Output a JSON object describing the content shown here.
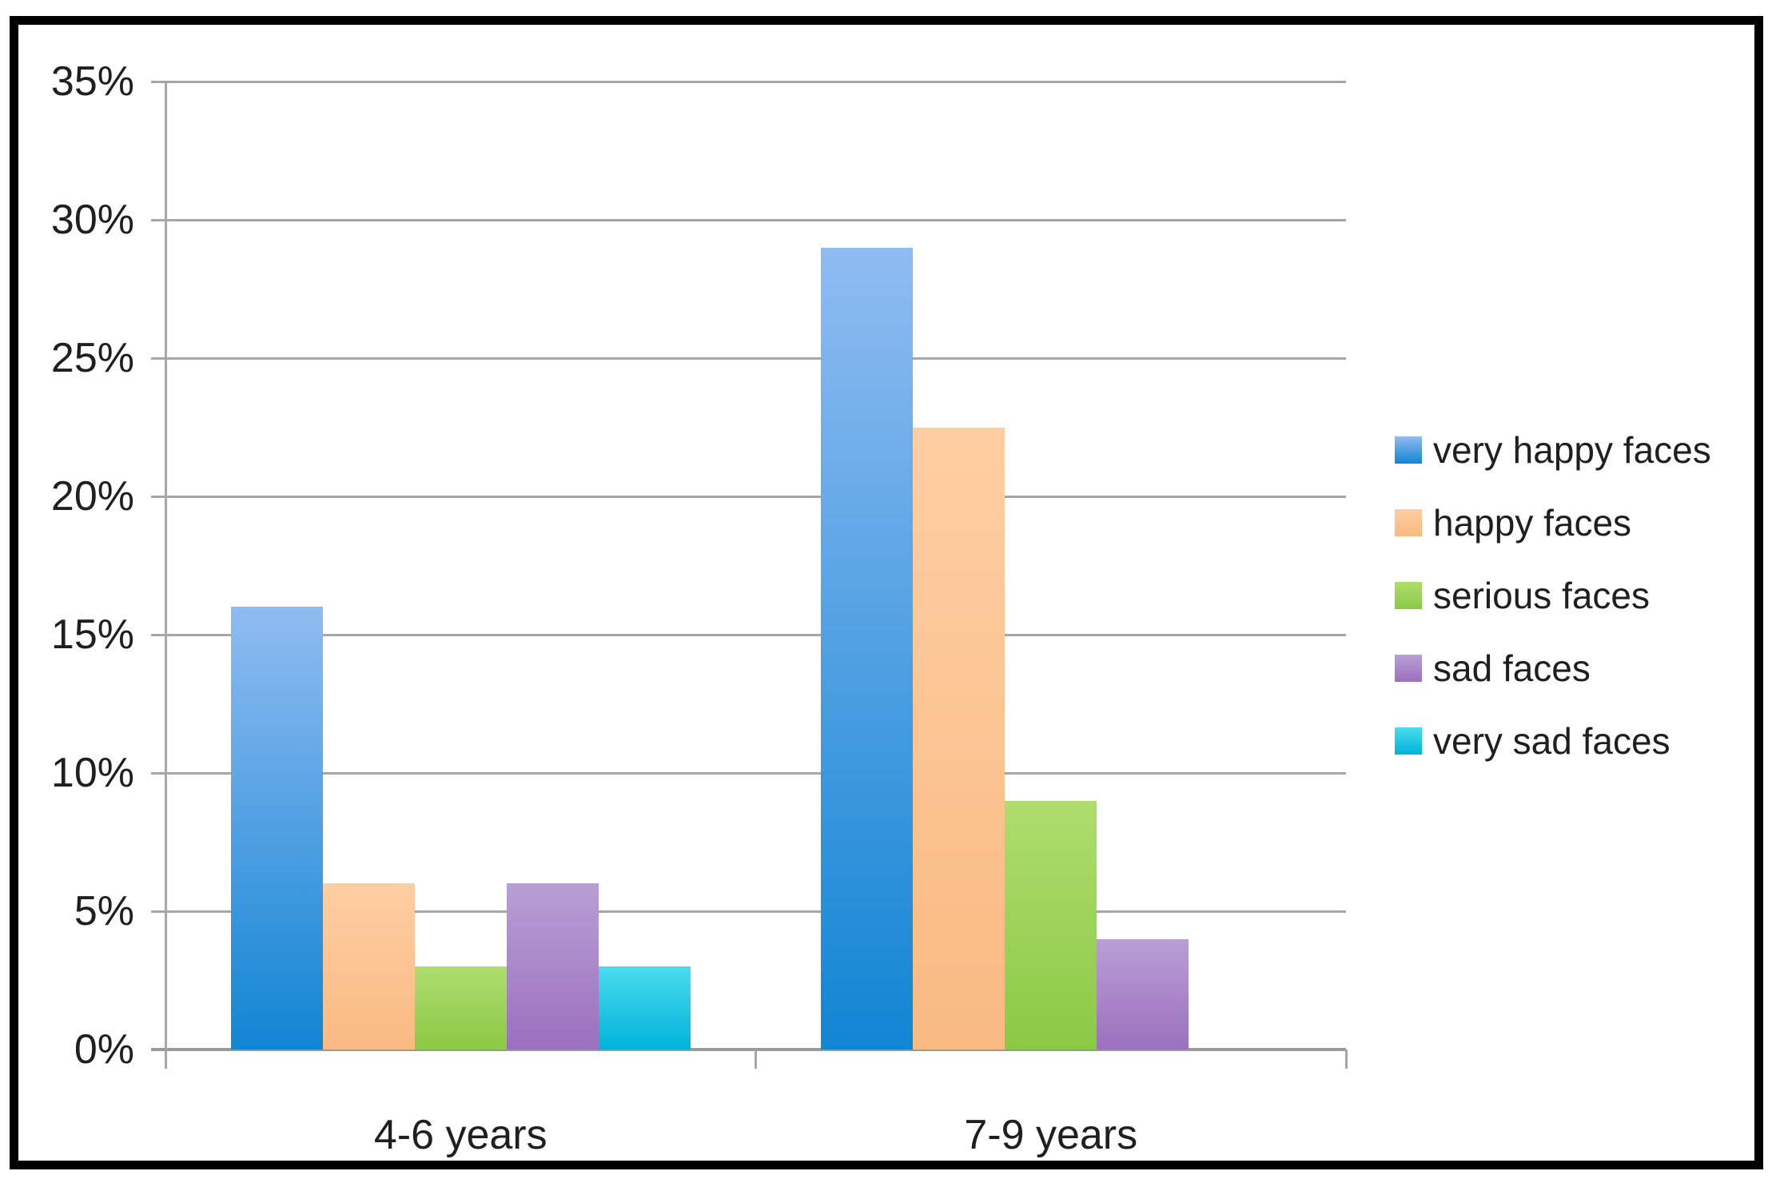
{
  "chart_data": {
    "type": "bar",
    "title": "",
    "xlabel": "",
    "ylabel": "",
    "categories": [
      "4-6 years",
      "7-9 years"
    ],
    "series": [
      {
        "name": "very happy faces",
        "values": [
          16,
          29
        ],
        "color_top": "#8fbcf1",
        "color_bottom": "#1185d3"
      },
      {
        "name": "happy faces",
        "values": [
          6,
          22.5
        ],
        "color_top": "#fecea2",
        "color_bottom": "#f9ba82"
      },
      {
        "name": "serious faces",
        "values": [
          3,
          9
        ],
        "color_top": "#aedd6e",
        "color_bottom": "#8bc944"
      },
      {
        "name": "sad faces",
        "values": [
          6,
          4
        ],
        "color_top": "#b99fd5",
        "color_bottom": "#9b70be"
      },
      {
        "name": "very sad faces",
        "values": [
          3,
          0
        ],
        "color_top": "#4addf0",
        "color_bottom": "#00b2d9"
      }
    ],
    "ylim": [
      0,
      35
    ],
    "ytick_step": 5,
    "y_tick_labels": [
      "0%",
      "5%",
      "10%",
      "15%",
      "20%",
      "25%",
      "30%",
      "35%"
    ],
    "grid": true,
    "legend_position": "right",
    "colors": {
      "gridline": "#a6a6a6",
      "axis": "#999999",
      "text": "#1f1f1f",
      "border": "#000000",
      "background": "#ffffff"
    }
  }
}
